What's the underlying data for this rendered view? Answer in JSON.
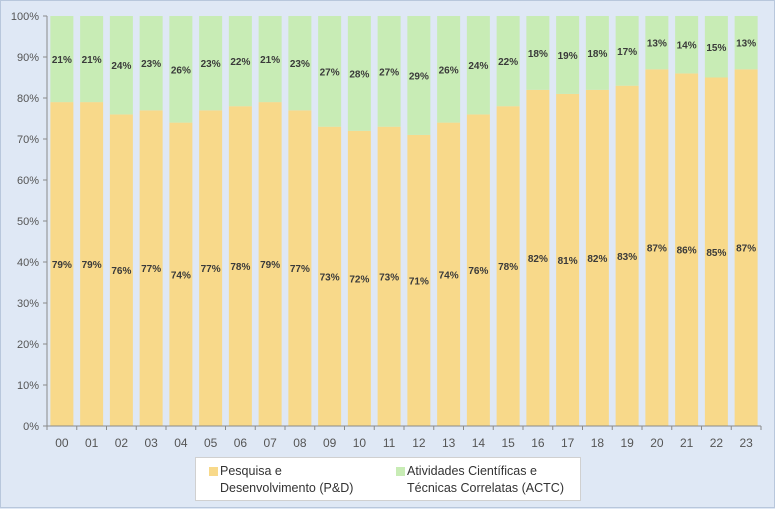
{
  "chart_data": {
    "type": "bar",
    "stacked": true,
    "title": "",
    "xlabel": "",
    "ylabel": "",
    "ylim": [
      0,
      100
    ],
    "y_ticks": [
      "0%",
      "10%",
      "20%",
      "30%",
      "40%",
      "50%",
      "60%",
      "70%",
      "80%",
      "90%",
      "100%"
    ],
    "grid": false,
    "categories": [
      "00",
      "01",
      "02",
      "03",
      "04",
      "05",
      "06",
      "07",
      "08",
      "09",
      "10",
      "11",
      "12",
      "13",
      "14",
      "15",
      "16",
      "17",
      "18",
      "19",
      "20",
      "21",
      "22",
      "23"
    ],
    "series": [
      {
        "name": "Pesquisa e Desenvolvimento (P&D)",
        "color": "#f8d98a",
        "values": [
          79,
          79,
          76,
          77,
          74,
          77,
          78,
          79,
          77,
          73,
          72,
          73,
          71,
          74,
          76,
          78,
          82,
          81,
          82,
          83,
          87,
          86,
          85,
          87
        ],
        "labels": [
          "79%",
          "79%",
          "76%",
          "77%",
          "74%",
          "77%",
          "78%",
          "79%",
          "77%",
          "73%",
          "72%",
          "73%",
          "71%",
          "74%",
          "76%",
          "78%",
          "82%",
          "81%",
          "82%",
          "83%",
          "87%",
          "86%",
          "85%",
          "87%"
        ]
      },
      {
        "name": "Atividades Científicas e Técnicas Correlatas (ACTC)",
        "color": "#c8ecb5",
        "values": [
          21,
          21,
          24,
          23,
          26,
          23,
          22,
          21,
          23,
          27,
          28,
          27,
          29,
          26,
          24,
          22,
          18,
          19,
          18,
          17,
          13,
          14,
          15,
          13
        ],
        "labels": [
          "21%",
          "21%",
          "24%",
          "23%",
          "26%",
          "23%",
          "22%",
          "21%",
          "23%",
          "27%",
          "28%",
          "27%",
          "29%",
          "26%",
          "24%",
          "22%",
          "18%",
          "19%",
          "18%",
          "17%",
          "13%",
          "14%",
          "15%",
          "13%"
        ]
      }
    ],
    "legend": {
      "position": "bottom",
      "items": [
        {
          "line1": "Pesquisa e",
          "line2": "Desenvolvimento (P&D)"
        },
        {
          "line1": "Atividades Científicas e",
          "line2": "Técnicas Correlatas (ACTC)"
        }
      ]
    },
    "label_color": "#3a3a3a",
    "axis_text_color": "#555555"
  }
}
